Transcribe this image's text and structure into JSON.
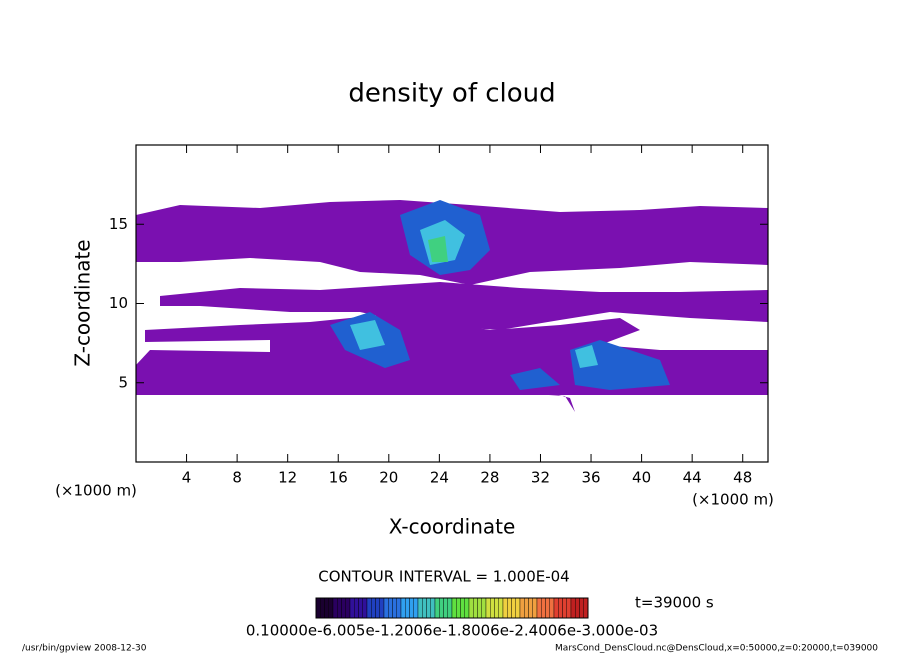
{
  "chart_data": {
    "type": "contour",
    "title": "density of cloud",
    "x_label": "X-coordinate",
    "y_label": "Z-coordinate",
    "x_unit": "(×1000 m)",
    "y_unit": "(×1000 m)",
    "xlim": [
      0,
      50
    ],
    "ylim": [
      0,
      20
    ],
    "xticks": [
      4,
      8,
      12,
      16,
      20,
      24,
      28,
      32,
      36,
      40,
      44,
      48
    ],
    "yticks": [
      5,
      10,
      15
    ],
    "contour_interval": "CONTOUR INTERVAL = 1.000E-04",
    "time_label": "t=39000 s",
    "colorbar_labels": "0.10000e-6.005e-1.2006e-1.8006e-2.4006e-3.000e-03",
    "colorbar_colors": [
      "#1a0030",
      "#2a0060",
      "#30109a",
      "#2040c0",
      "#2a70e0",
      "#30a0f0",
      "#40c0c0",
      "#40d080",
      "#60e040",
      "#a0e040",
      "#d0e040",
      "#f0d040",
      "#f0a040",
      "#f07040",
      "#e04030",
      "#c02020"
    ],
    "footer_left": "/usr/bin/gpview   2008-12-30",
    "footer_right": "MarsCond_DensCloud.nc@DensCloud,x=0:50000,z=0:20000,t=039000"
  }
}
